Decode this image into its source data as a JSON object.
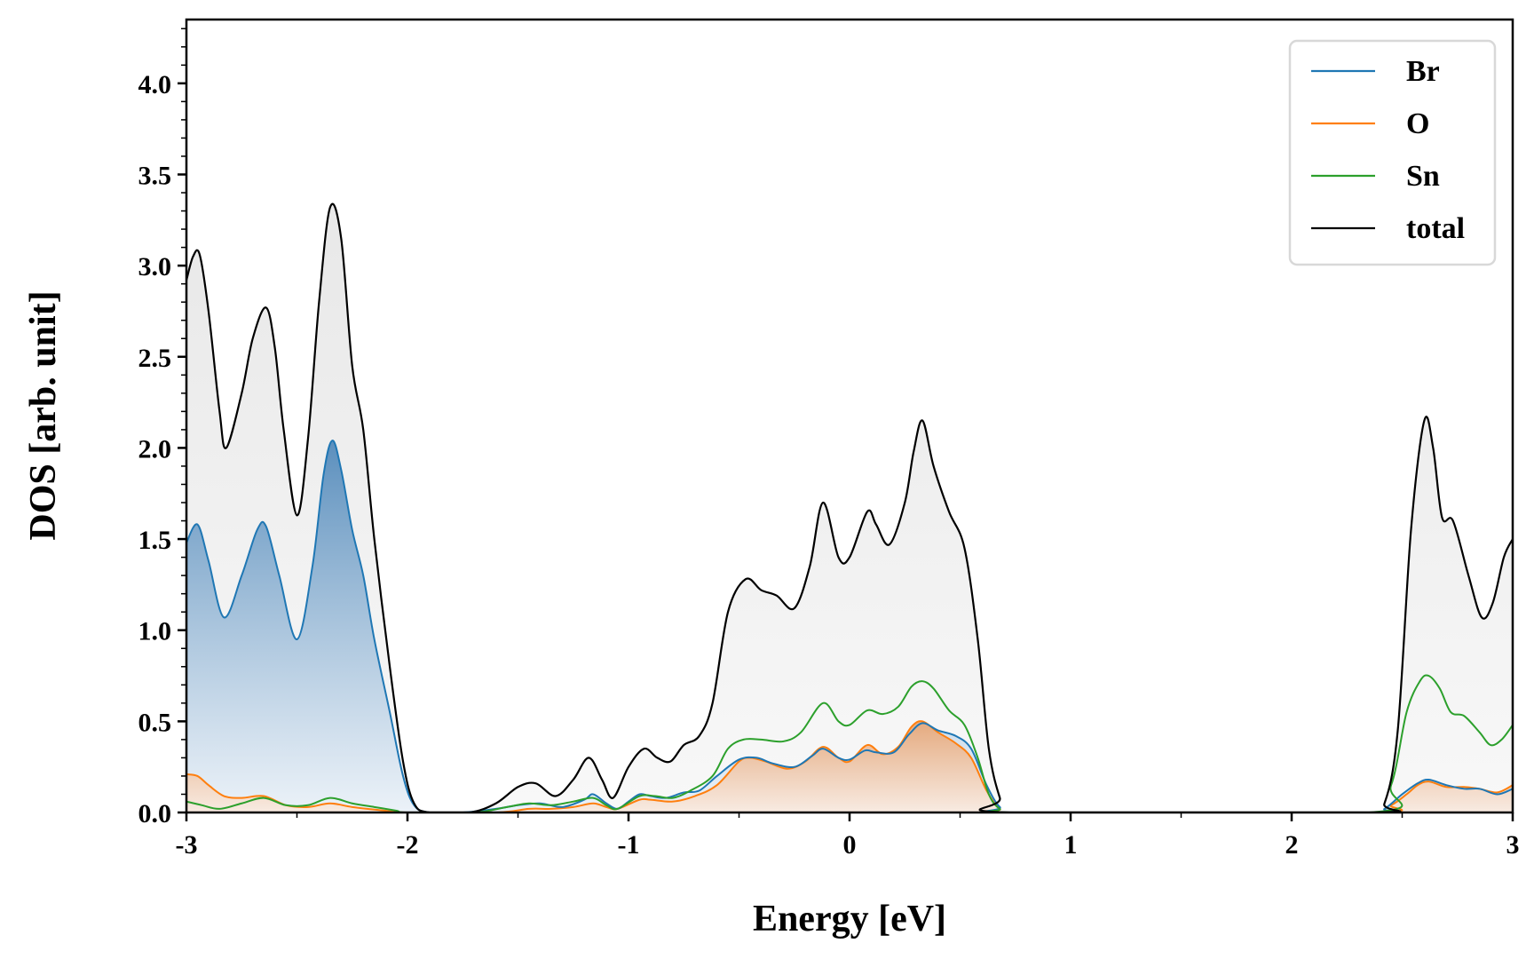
{
  "chart_data": {
    "type": "line",
    "title": "",
    "xlabel": "Energy [eV]",
    "ylabel": "DOS [arb. unit]",
    "xlim": [
      -3,
      3
    ],
    "ylim": [
      0,
      4.35
    ],
    "x_ticks": [
      -3,
      -2,
      -1,
      0,
      1,
      2,
      3
    ],
    "x_tick_labels": [
      "-3",
      "-2",
      "-1",
      "0",
      "1",
      "2",
      "3"
    ],
    "y_ticks": [
      0,
      0.5,
      1,
      1.5,
      2,
      2.5,
      3,
      3.5,
      4
    ],
    "y_tick_labels": [
      "0.0",
      "0.5",
      "1.0",
      "1.5",
      "2.0",
      "2.5",
      "3.0",
      "3.5",
      "4.0"
    ],
    "grid": false,
    "legend_position": "top-right",
    "series": [
      {
        "name": "Br",
        "color": "#1f77b4",
        "filled": true,
        "points": [
          [
            -3.0,
            1.48
          ],
          [
            -2.95,
            1.58
          ],
          [
            -2.9,
            1.38
          ],
          [
            -2.83,
            1.07
          ],
          [
            -2.75,
            1.3
          ],
          [
            -2.68,
            1.55
          ],
          [
            -2.64,
            1.57
          ],
          [
            -2.58,
            1.3
          ],
          [
            -2.5,
            0.95
          ],
          [
            -2.43,
            1.35
          ],
          [
            -2.38,
            1.85
          ],
          [
            -2.34,
            2.04
          ],
          [
            -2.3,
            1.88
          ],
          [
            -2.25,
            1.55
          ],
          [
            -2.2,
            1.3
          ],
          [
            -2.15,
            0.95
          ],
          [
            -2.08,
            0.55
          ],
          [
            -2.02,
            0.2
          ],
          [
            -1.97,
            0.04
          ],
          [
            -1.9,
            0.0
          ],
          [
            -1.75,
            0.0
          ],
          [
            -1.6,
            0.02
          ],
          [
            -1.5,
            0.04
          ],
          [
            -1.4,
            0.05
          ],
          [
            -1.3,
            0.03
          ],
          [
            -1.2,
            0.07
          ],
          [
            -1.16,
            0.1
          ],
          [
            -1.1,
            0.05
          ],
          [
            -1.05,
            0.02
          ],
          [
            -1.0,
            0.06
          ],
          [
            -0.95,
            0.1
          ],
          [
            -0.9,
            0.09
          ],
          [
            -0.83,
            0.08
          ],
          [
            -0.75,
            0.11
          ],
          [
            -0.68,
            0.12
          ],
          [
            -0.6,
            0.2
          ],
          [
            -0.5,
            0.29
          ],
          [
            -0.42,
            0.3
          ],
          [
            -0.35,
            0.27
          ],
          [
            -0.25,
            0.25
          ],
          [
            -0.17,
            0.31
          ],
          [
            -0.12,
            0.35
          ],
          [
            -0.05,
            0.3
          ],
          [
            0.0,
            0.29
          ],
          [
            0.07,
            0.34
          ],
          [
            0.12,
            0.33
          ],
          [
            0.2,
            0.33
          ],
          [
            0.27,
            0.43
          ],
          [
            0.33,
            0.49
          ],
          [
            0.4,
            0.45
          ],
          [
            0.48,
            0.42
          ],
          [
            0.55,
            0.35
          ],
          [
            0.62,
            0.15
          ],
          [
            0.68,
            0.03
          ],
          [
            0.75,
            0.0
          ],
          [
            2.35,
            0.0
          ],
          [
            2.42,
            0.02
          ],
          [
            2.5,
            0.1
          ],
          [
            2.57,
            0.16
          ],
          [
            2.62,
            0.18
          ],
          [
            2.7,
            0.15
          ],
          [
            2.78,
            0.13
          ],
          [
            2.85,
            0.13
          ],
          [
            2.93,
            0.1
          ],
          [
            3.0,
            0.13
          ]
        ]
      },
      {
        "name": "O",
        "color": "#ff7f0e",
        "filled": true,
        "points": [
          [
            -3.0,
            0.21
          ],
          [
            -2.95,
            0.2
          ],
          [
            -2.9,
            0.15
          ],
          [
            -2.83,
            0.09
          ],
          [
            -2.75,
            0.08
          ],
          [
            -2.65,
            0.09
          ],
          [
            -2.55,
            0.04
          ],
          [
            -2.45,
            0.03
          ],
          [
            -2.35,
            0.05
          ],
          [
            -2.25,
            0.03
          ],
          [
            -2.1,
            0.01
          ],
          [
            -2.0,
            0.0
          ],
          [
            -1.6,
            0.0
          ],
          [
            -1.45,
            0.02
          ],
          [
            -1.35,
            0.02
          ],
          [
            -1.25,
            0.03
          ],
          [
            -1.16,
            0.05
          ],
          [
            -1.1,
            0.03
          ],
          [
            -1.05,
            0.02
          ],
          [
            -0.95,
            0.07
          ],
          [
            -0.9,
            0.07
          ],
          [
            -0.8,
            0.06
          ],
          [
            -0.7,
            0.09
          ],
          [
            -0.6,
            0.15
          ],
          [
            -0.5,
            0.28
          ],
          [
            -0.45,
            0.3
          ],
          [
            -0.38,
            0.28
          ],
          [
            -0.28,
            0.24
          ],
          [
            -0.2,
            0.28
          ],
          [
            -0.12,
            0.36
          ],
          [
            -0.05,
            0.3
          ],
          [
            0.0,
            0.28
          ],
          [
            0.08,
            0.37
          ],
          [
            0.15,
            0.32
          ],
          [
            0.22,
            0.36
          ],
          [
            0.28,
            0.47
          ],
          [
            0.33,
            0.5
          ],
          [
            0.4,
            0.44
          ],
          [
            0.48,
            0.38
          ],
          [
            0.55,
            0.3
          ],
          [
            0.62,
            0.12
          ],
          [
            0.68,
            0.02
          ],
          [
            0.75,
            0.0
          ],
          [
            2.35,
            0.0
          ],
          [
            2.45,
            0.04
          ],
          [
            2.52,
            0.1
          ],
          [
            2.57,
            0.15
          ],
          [
            2.62,
            0.17
          ],
          [
            2.7,
            0.14
          ],
          [
            2.78,
            0.14
          ],
          [
            2.85,
            0.13
          ],
          [
            2.93,
            0.11
          ],
          [
            3.0,
            0.15
          ]
        ]
      },
      {
        "name": "Sn",
        "color": "#2ca02c",
        "filled": false,
        "points": [
          [
            -3.0,
            0.06
          ],
          [
            -2.93,
            0.04
          ],
          [
            -2.85,
            0.02
          ],
          [
            -2.75,
            0.05
          ],
          [
            -2.65,
            0.08
          ],
          [
            -2.55,
            0.04
          ],
          [
            -2.45,
            0.04
          ],
          [
            -2.35,
            0.08
          ],
          [
            -2.25,
            0.05
          ],
          [
            -2.15,
            0.03
          ],
          [
            -2.05,
            0.01
          ],
          [
            -2.0,
            0.0
          ],
          [
            -1.7,
            0.0
          ],
          [
            -1.55,
            0.03
          ],
          [
            -1.45,
            0.05
          ],
          [
            -1.35,
            0.04
          ],
          [
            -1.25,
            0.06
          ],
          [
            -1.16,
            0.08
          ],
          [
            -1.1,
            0.04
          ],
          [
            -1.05,
            0.02
          ],
          [
            -0.95,
            0.09
          ],
          [
            -0.88,
            0.09
          ],
          [
            -0.8,
            0.08
          ],
          [
            -0.72,
            0.12
          ],
          [
            -0.62,
            0.2
          ],
          [
            -0.55,
            0.35
          ],
          [
            -0.48,
            0.4
          ],
          [
            -0.4,
            0.4
          ],
          [
            -0.3,
            0.39
          ],
          [
            -0.22,
            0.44
          ],
          [
            -0.12,
            0.6
          ],
          [
            -0.05,
            0.5
          ],
          [
            0.0,
            0.48
          ],
          [
            0.08,
            0.56
          ],
          [
            0.15,
            0.54
          ],
          [
            0.22,
            0.58
          ],
          [
            0.28,
            0.69
          ],
          [
            0.33,
            0.72
          ],
          [
            0.38,
            0.68
          ],
          [
            0.45,
            0.56
          ],
          [
            0.52,
            0.48
          ],
          [
            0.58,
            0.3
          ],
          [
            0.63,
            0.1
          ],
          [
            0.68,
            0.02
          ],
          [
            0.75,
            0.0
          ],
          [
            2.35,
            0.0
          ],
          [
            2.45,
            0.15
          ],
          [
            2.52,
            0.55
          ],
          [
            2.58,
            0.72
          ],
          [
            2.62,
            0.75
          ],
          [
            2.67,
            0.68
          ],
          [
            2.72,
            0.55
          ],
          [
            2.78,
            0.53
          ],
          [
            2.85,
            0.44
          ],
          [
            2.9,
            0.37
          ],
          [
            2.95,
            0.4
          ],
          [
            3.0,
            0.48
          ]
        ]
      },
      {
        "name": "total",
        "color": "#000000",
        "filled": true,
        "points": [
          [
            -3.0,
            2.92
          ],
          [
            -2.97,
            3.05
          ],
          [
            -2.94,
            3.06
          ],
          [
            -2.9,
            2.75
          ],
          [
            -2.85,
            2.2
          ],
          [
            -2.82,
            2.0
          ],
          [
            -2.75,
            2.3
          ],
          [
            -2.7,
            2.6
          ],
          [
            -2.64,
            2.77
          ],
          [
            -2.6,
            2.55
          ],
          [
            -2.56,
            2.1
          ],
          [
            -2.5,
            1.63
          ],
          [
            -2.45,
            2.05
          ],
          [
            -2.4,
            2.8
          ],
          [
            -2.35,
            3.32
          ],
          [
            -2.3,
            3.15
          ],
          [
            -2.25,
            2.45
          ],
          [
            -2.2,
            2.1
          ],
          [
            -2.15,
            1.5
          ],
          [
            -2.08,
            0.8
          ],
          [
            -2.02,
            0.28
          ],
          [
            -1.97,
            0.05
          ],
          [
            -1.9,
            0.0
          ],
          [
            -1.72,
            0.0
          ],
          [
            -1.6,
            0.05
          ],
          [
            -1.5,
            0.14
          ],
          [
            -1.42,
            0.16
          ],
          [
            -1.33,
            0.09
          ],
          [
            -1.25,
            0.18
          ],
          [
            -1.18,
            0.3
          ],
          [
            -1.12,
            0.18
          ],
          [
            -1.07,
            0.08
          ],
          [
            -1.0,
            0.25
          ],
          [
            -0.93,
            0.35
          ],
          [
            -0.87,
            0.3
          ],
          [
            -0.81,
            0.28
          ],
          [
            -0.75,
            0.37
          ],
          [
            -0.68,
            0.42
          ],
          [
            -0.62,
            0.6
          ],
          [
            -0.55,
            1.1
          ],
          [
            -0.47,
            1.28
          ],
          [
            -0.4,
            1.22
          ],
          [
            -0.33,
            1.19
          ],
          [
            -0.25,
            1.12
          ],
          [
            -0.18,
            1.35
          ],
          [
            -0.12,
            1.7
          ],
          [
            -0.05,
            1.4
          ],
          [
            0.0,
            1.4
          ],
          [
            0.08,
            1.65
          ],
          [
            0.12,
            1.58
          ],
          [
            0.18,
            1.47
          ],
          [
            0.25,
            1.7
          ],
          [
            0.29,
            1.98
          ],
          [
            0.33,
            2.15
          ],
          [
            0.38,
            1.9
          ],
          [
            0.45,
            1.65
          ],
          [
            0.52,
            1.45
          ],
          [
            0.58,
            0.95
          ],
          [
            0.63,
            0.35
          ],
          [
            0.68,
            0.08
          ],
          [
            0.72,
            0.0
          ],
          [
            2.35,
            0.0
          ],
          [
            2.42,
            0.05
          ],
          [
            2.48,
            0.45
          ],
          [
            2.54,
            1.55
          ],
          [
            2.6,
            2.15
          ],
          [
            2.64,
            2.0
          ],
          [
            2.68,
            1.62
          ],
          [
            2.73,
            1.6
          ],
          [
            2.8,
            1.3
          ],
          [
            2.86,
            1.07
          ],
          [
            2.91,
            1.15
          ],
          [
            2.96,
            1.4
          ],
          [
            3.0,
            1.5
          ]
        ]
      }
    ]
  }
}
